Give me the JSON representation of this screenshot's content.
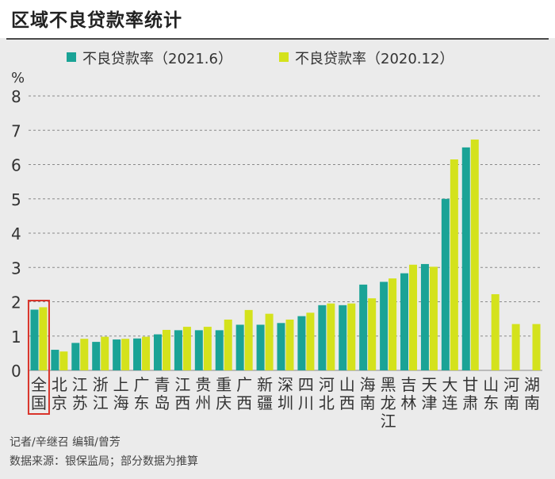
{
  "title": "区域不良贷款率统计",
  "footer": {
    "credits": "记者/辛继召 编辑/曾芳",
    "source": "数据来源：银保监局；部分数据为推算"
  },
  "colors": {
    "series_2021": "#1aa396",
    "series_2020": "#d4e21c",
    "highlight": "#d9342b"
  },
  "chart_data": {
    "type": "bar",
    "ylabel": "%",
    "ylim": [
      0,
      8
    ],
    "yticks": [
      0,
      1,
      2,
      3,
      4,
      5,
      6,
      7,
      8
    ],
    "grid": "horizontal dashed",
    "legend_position": "top",
    "highlighted_category": "全国",
    "categories": [
      "全国",
      "北京",
      "江苏",
      "浙江",
      "上海",
      "广东",
      "青岛",
      "江西",
      "贵州",
      "重庆",
      "广西",
      "新疆",
      "深圳",
      "四川",
      "河北",
      "山西",
      "海南",
      "黑龙江",
      "吉林",
      "天津",
      "大连",
      "甘肃",
      "山东",
      "河南",
      "湖南"
    ],
    "category_lines": [
      [
        "全",
        "国"
      ],
      [
        "北",
        "京"
      ],
      [
        "江",
        "苏"
      ],
      [
        "浙",
        "江"
      ],
      [
        "上",
        "海"
      ],
      [
        "广",
        "东"
      ],
      [
        "青",
        "岛"
      ],
      [
        "江",
        "西"
      ],
      [
        "贵",
        "州"
      ],
      [
        "重",
        "庆"
      ],
      [
        "广",
        "西"
      ],
      [
        "新",
        "疆"
      ],
      [
        "深",
        "圳"
      ],
      [
        "四",
        "川"
      ],
      [
        "河",
        "北"
      ],
      [
        "山",
        "西"
      ],
      [
        "海",
        "南"
      ],
      [
        "黑",
        "龙",
        "江"
      ],
      [
        "吉",
        "林"
      ],
      [
        "天",
        "津"
      ],
      [
        "大",
        "连"
      ],
      [
        "甘",
        "肃"
      ],
      [
        "山",
        "东"
      ],
      [
        "河",
        "南"
      ],
      [
        "湖",
        "南"
      ]
    ],
    "series": [
      {
        "name": "不良贷款率（2021.6）",
        "values": [
          1.77,
          0.6,
          0.8,
          0.83,
          0.9,
          0.93,
          1.05,
          1.17,
          1.17,
          1.17,
          1.33,
          1.33,
          1.38,
          1.58,
          1.9,
          1.9,
          2.5,
          2.58,
          2.83,
          3.1,
          5.0,
          6.5,
          null,
          null,
          null
        ]
      },
      {
        "name": "不良贷款率（2020.12）",
        "values": [
          1.84,
          0.55,
          0.92,
          0.98,
          0.92,
          0.98,
          1.18,
          1.27,
          1.27,
          1.48,
          1.76,
          1.65,
          1.48,
          1.68,
          1.95,
          1.95,
          2.1,
          2.68,
          3.08,
          3.02,
          6.15,
          6.73,
          2.22,
          1.35,
          1.35
        ]
      }
    ]
  }
}
